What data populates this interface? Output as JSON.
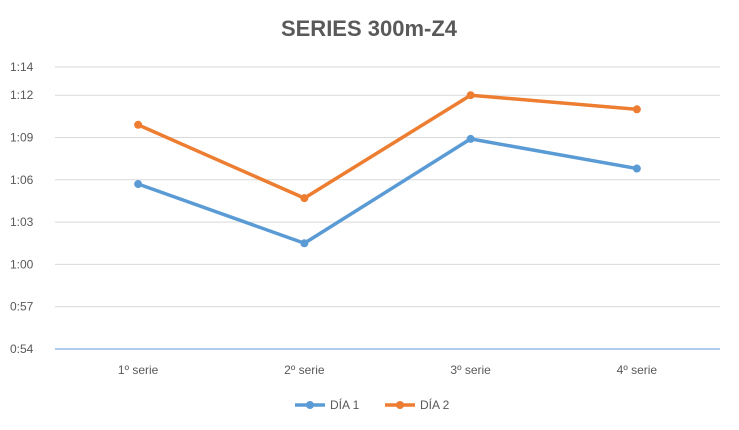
{
  "chart_data": {
    "type": "line",
    "title": "SERIES 300m-Z4",
    "categories": [
      "1º serie",
      "2º serie",
      "3º serie",
      "4º serie"
    ],
    "y_ticks": [
      "0:54",
      "0:57",
      "1:00",
      "1:03",
      "1:06",
      "1:09",
      "1:12",
      "1:14"
    ],
    "ylim": [
      54,
      74
    ],
    "y_unit": "seconds",
    "series": [
      {
        "name": "DÍA 1",
        "color": "#5B9BD5",
        "values": [
          65.7,
          61.5,
          68.9,
          66.8
        ]
      },
      {
        "name": "DÍA 2",
        "color": "#ED7D31",
        "values": [
          69.9,
          64.7,
          72.0,
          71.0
        ]
      }
    ],
    "grid": true,
    "legend_position": "bottom"
  }
}
